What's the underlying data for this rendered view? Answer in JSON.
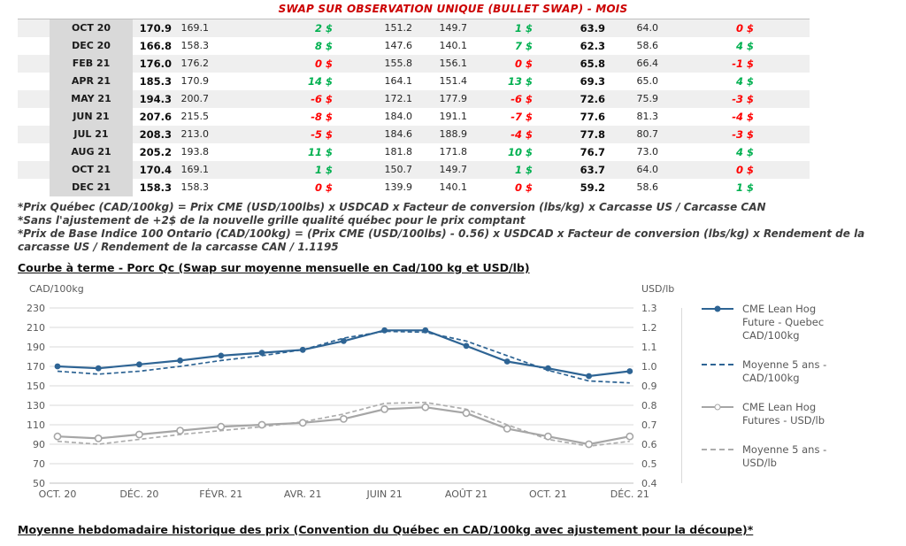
{
  "page_title": "SWAP SUR OBSERVATION UNIQUE (BULLET SWAP) - MOIS",
  "colors": {
    "positive": "#00B050",
    "negative": "#FF0000",
    "title_red": "#CC0000",
    "blue_line": "#2E6494",
    "gray_line": "#A6A6A6"
  },
  "swap_table": {
    "rows": [
      {
        "month": "OCT 20",
        "v": [
          "170.9",
          "169.1",
          "151.2",
          "149.7",
          "63.9",
          "64.0"
        ],
        "d": [
          {
            "t": "2 $",
            "s": "pos"
          },
          {
            "t": "1 $",
            "s": "pos"
          },
          {
            "t": "0 $",
            "s": "neg"
          }
        ]
      },
      {
        "month": "DEC 20",
        "v": [
          "166.8",
          "158.3",
          "147.6",
          "140.1",
          "62.3",
          "58.6"
        ],
        "d": [
          {
            "t": "8 $",
            "s": "pos"
          },
          {
            "t": "7 $",
            "s": "pos"
          },
          {
            "t": "4 $",
            "s": "pos"
          }
        ]
      },
      {
        "month": "FEB 21",
        "v": [
          "176.0",
          "176.2",
          "155.8",
          "156.1",
          "65.8",
          "66.4"
        ],
        "d": [
          {
            "t": "0 $",
            "s": "neg"
          },
          {
            "t": "0 $",
            "s": "neg"
          },
          {
            "t": "-1 $",
            "s": "neg"
          }
        ]
      },
      {
        "month": "APR 21",
        "v": [
          "185.3",
          "170.9",
          "164.1",
          "151.4",
          "69.3",
          "65.0"
        ],
        "d": [
          {
            "t": "14 $",
            "s": "pos"
          },
          {
            "t": "13 $",
            "s": "pos"
          },
          {
            "t": "4 $",
            "s": "pos"
          }
        ]
      },
      {
        "month": "MAY 21",
        "v": [
          "194.3",
          "200.7",
          "172.1",
          "177.9",
          "72.6",
          "75.9"
        ],
        "d": [
          {
            "t": "-6 $",
            "s": "neg"
          },
          {
            "t": "-6 $",
            "s": "neg"
          },
          {
            "t": "-3 $",
            "s": "neg"
          }
        ]
      },
      {
        "month": "JUN 21",
        "v": [
          "207.6",
          "215.5",
          "184.0",
          "191.1",
          "77.6",
          "81.3"
        ],
        "d": [
          {
            "t": "-8 $",
            "s": "neg"
          },
          {
            "t": "-7 $",
            "s": "neg"
          },
          {
            "t": "-4 $",
            "s": "neg"
          }
        ]
      },
      {
        "month": "JUL 21",
        "v": [
          "208.3",
          "213.0",
          "184.6",
          "188.9",
          "77.8",
          "80.7"
        ],
        "d": [
          {
            "t": "-5 $",
            "s": "neg"
          },
          {
            "t": "-4 $",
            "s": "neg"
          },
          {
            "t": "-3 $",
            "s": "neg"
          }
        ]
      },
      {
        "month": "AUG 21",
        "v": [
          "205.2",
          "193.8",
          "181.8",
          "171.8",
          "76.7",
          "73.0"
        ],
        "d": [
          {
            "t": "11 $",
            "s": "pos"
          },
          {
            "t": "10 $",
            "s": "pos"
          },
          {
            "t": "4 $",
            "s": "pos"
          }
        ]
      },
      {
        "month": "OCT 21",
        "v": [
          "170.4",
          "169.1",
          "150.7",
          "149.7",
          "63.7",
          "64.0"
        ],
        "d": [
          {
            "t": "1 $",
            "s": "pos"
          },
          {
            "t": "1 $",
            "s": "pos"
          },
          {
            "t": "0 $",
            "s": "neg"
          }
        ]
      },
      {
        "month": "DEC 21",
        "v": [
          "158.3",
          "158.3",
          "139.9",
          "140.1",
          "59.2",
          "58.6"
        ],
        "d": [
          {
            "t": "0 $",
            "s": "neg"
          },
          {
            "t": "0 $",
            "s": "neg"
          },
          {
            "t": "1 $",
            "s": "pos"
          }
        ]
      }
    ]
  },
  "footnotes": [
    "*Prix Québec (CAD/100kg) = Prix CME (USD/100lbs) x USDCAD x Facteur de conversion (lbs/kg) x Carcasse US / Carcasse CAN",
    "*Sans l'ajustement de +2$ de la nouvelle grille qualité québec pour le prix comptant",
    "*Prix de Base Indice 100 Ontario (CAD/100kg) = (Prix CME (USD/100lbs) - 0.56) x USDCAD x Facteur de conversion (lbs/kg) x Rendement de la carcasse US / Rendement de la carcasse CAN / 1.1195"
  ],
  "chart_section_title": "Courbe à terme - Porc Qc (Swap sur moyenne mensuelle en Cad/100 kg et USD/lb)",
  "bottom_section_title": "Moyenne hebdomadaire historique des prix (Convention du Québec en CAD/100kg avec ajustement pour la découpe)*",
  "chart_data": {
    "type": "line",
    "title": "Courbe à terme - Porc Qc (Swap sur moyenne mensuelle en Cad/100 kg et USD/lb)",
    "n_points": 15,
    "x_tick_labels": [
      "OCT. 20",
      "DÉC. 20",
      "FÉVR. 21",
      "AVR. 21",
      "JUIN 21",
      "AOÛT 21",
      "OCT. 21",
      "DÉC. 21"
    ],
    "axes": {
      "left": {
        "title": "CAD/100kg",
        "min": 50,
        "max": 230,
        "step": 20
      },
      "right": {
        "title": "USD/lb",
        "min": 0.4,
        "max": 1.3,
        "step": 0.1
      }
    },
    "grid": true,
    "legend_position": "right",
    "series": [
      {
        "name": "CME Lean Hog Future - Quebec CAD/100kg",
        "axis": "left",
        "style": "solid",
        "marker": "filled",
        "color": "#2E6494",
        "values": [
          170,
          168,
          172,
          176,
          181,
          184,
          187,
          196,
          207,
          207,
          191,
          175,
          168,
          160,
          165
        ]
      },
      {
        "name": "Moyenne 5 ans - CAD/100kg",
        "axis": "left",
        "style": "dashed",
        "marker": "none",
        "color": "#2E6494",
        "values": [
          165,
          162,
          165,
          170,
          176,
          181,
          187,
          199,
          206,
          205,
          196,
          181,
          166,
          155,
          153
        ]
      },
      {
        "name": "CME Lean Hog Futures - USD/lb",
        "axis": "right",
        "style": "solid",
        "marker": "open",
        "color": "#A6A6A6",
        "values": [
          0.64,
          0.63,
          0.65,
          0.67,
          0.69,
          0.7,
          0.71,
          0.73,
          0.78,
          0.79,
          0.76,
          0.68,
          0.64,
          0.6,
          0.64
        ]
      },
      {
        "name": "Moyenne 5 ans - USD/lb",
        "axis": "right",
        "style": "dashed",
        "marker": "none",
        "color": "#ADADAD",
        "values": [
          0.615,
          0.6,
          0.625,
          0.65,
          0.67,
          0.69,
          0.715,
          0.755,
          0.81,
          0.815,
          0.78,
          0.7,
          0.625,
          0.59,
          0.615
        ]
      }
    ]
  }
}
